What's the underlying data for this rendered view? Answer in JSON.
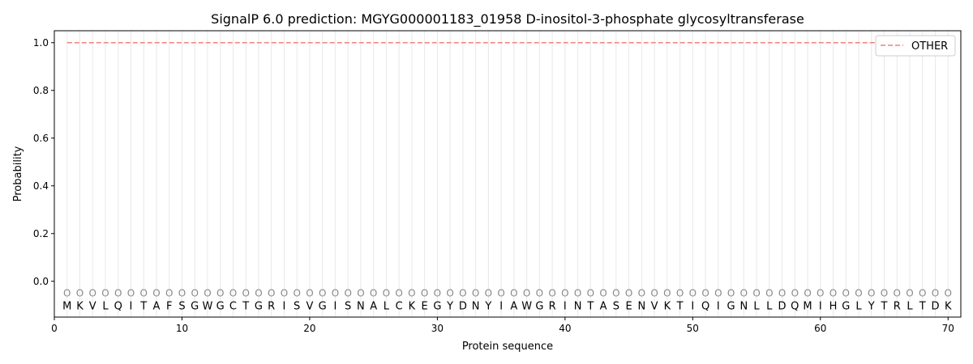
{
  "chart_data": {
    "type": "line",
    "title": "SignalP 6.0 prediction: MGYG000001183_01958 D-inositol-3-phosphate glycosyltransferase",
    "xlabel": "Protein sequence",
    "ylabel": "Probability",
    "xlim": [
      0,
      71
    ],
    "ylim": [
      -0.15,
      1.05
    ],
    "xticks": [
      0,
      10,
      20,
      30,
      40,
      50,
      60,
      70
    ],
    "yticks": [
      0.0,
      0.2,
      0.4,
      0.6,
      0.8,
      1.0
    ],
    "ytick_labels": [
      "0.0",
      "0.2",
      "0.4",
      "0.6",
      "0.8",
      "1.0"
    ],
    "sequence": [
      "M",
      "K",
      "V",
      "L",
      "Q",
      "I",
      "T",
      "A",
      "F",
      "S",
      "G",
      "W",
      "G",
      "C",
      "T",
      "G",
      "R",
      "I",
      "S",
      "V",
      "G",
      "I",
      "S",
      "N",
      "A",
      "L",
      "C",
      "K",
      "E",
      "G",
      "Y",
      "D",
      "N",
      "Y",
      "I",
      "A",
      "W",
      "G",
      "R",
      "I",
      "N",
      "T",
      "A",
      "S",
      "E",
      "N",
      "V",
      "K",
      "T",
      "I",
      "Q",
      "I",
      "G",
      "N",
      "L",
      "L",
      "D",
      "Q",
      "M",
      "I",
      "H",
      "G",
      "L",
      "Y",
      "T",
      "R",
      "L",
      "T",
      "D",
      "K"
    ],
    "position_label": "O",
    "series": [
      {
        "name": "OTHER",
        "color": "#f08080",
        "style": "dashed",
        "x_start": 1,
        "x_end": 70,
        "value": 1.0
      }
    ],
    "legend": "top-right",
    "grid": "vertical per residue"
  }
}
